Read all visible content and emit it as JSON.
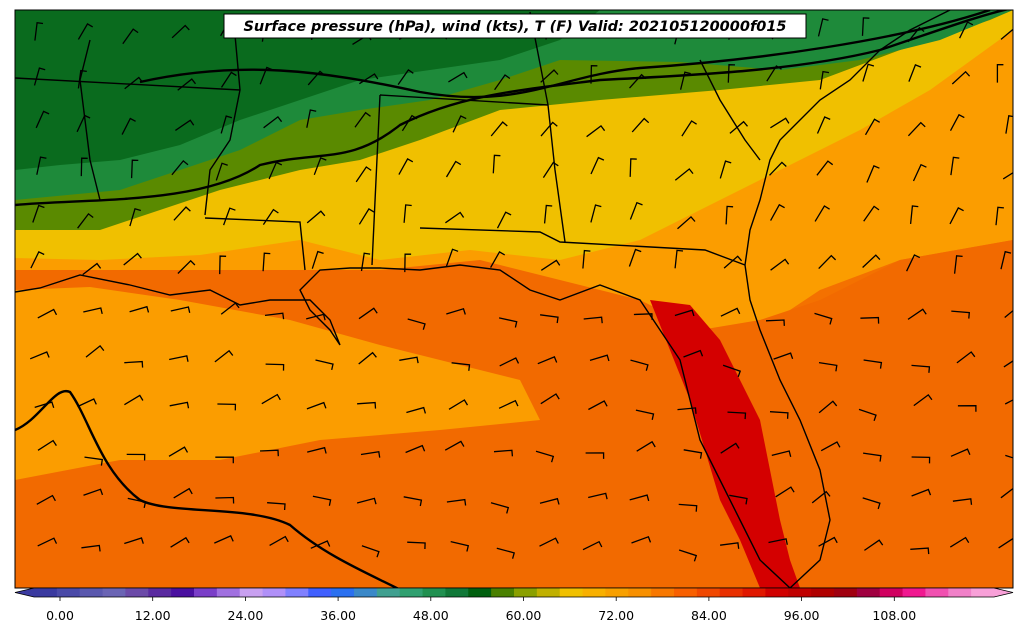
{
  "title": "Surface pressure (hPa), wind (kts), T (F) Valid: 202105120000f015",
  "colorbar": {
    "tick_labels": [
      "0.00",
      "12.00",
      "24.00",
      "36.00",
      "48.00",
      "60.00",
      "72.00",
      "84.00",
      "96.00",
      "108.00"
    ],
    "colors": [
      "#3a3aa0",
      "#4a4aa8",
      "#5a58ae",
      "#6a64b4",
      "#6b4aa8",
      "#5a2aa0",
      "#4a10a0",
      "#7a3ec8",
      "#a070e0",
      "#c8a0f0",
      "#b090f8",
      "#8080ff",
      "#4060ff",
      "#2a70f0",
      "#3a88c8",
      "#40a090",
      "#30a070",
      "#209050",
      "#107838",
      "#006010",
      "#4a8000",
      "#8aa000",
      "#c0b000",
      "#f0c000",
      "#f8b000",
      "#f8a000",
      "#f89000",
      "#f87800",
      "#f86000",
      "#f04800",
      "#e83000",
      "#e01800",
      "#d00000",
      "#c00000",
      "#b00000",
      "#a00010",
      "#a00040",
      "#d00060",
      "#f01890",
      "#f050b0",
      "#f080c8",
      "#f8a0d8"
    ]
  },
  "legend_colors": {
    "hot": "#d40000",
    "warm": "#f26a00",
    "orange": "#fb9d00",
    "yellow": "#f0c000",
    "olive": "#5a8a00",
    "green": "#1e8a3a",
    "dark_green": "#0a6b1e"
  }
}
